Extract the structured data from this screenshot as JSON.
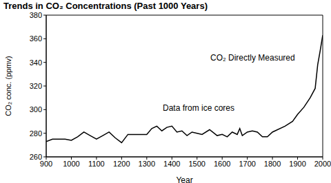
{
  "chart_data": {
    "type": "line",
    "title": "Trends in CO₂ Concentrations (Past 1000 Years)",
    "x_label": "Year",
    "y_label": "CO₂ conc. (ppmv)",
    "annotations": [
      "Data from ice cores",
      "CO₂ Directly Measured"
    ],
    "x": [
      900,
      925,
      950,
      975,
      1000,
      1025,
      1050,
      1075,
      1100,
      1125,
      1150,
      1175,
      1200,
      1225,
      1250,
      1275,
      1300,
      1320,
      1340,
      1360,
      1380,
      1400,
      1420,
      1440,
      1460,
      1480,
      1500,
      1520,
      1550,
      1580,
      1600,
      1620,
      1640,
      1660,
      1670,
      1680,
      1700,
      1720,
      1740,
      1760,
      1780,
      1800,
      1850,
      1880,
      1900,
      1925,
      1950,
      1970,
      1980,
      1990,
      2000
    ],
    "series": [
      {
        "name": "CO₂",
        "color": "#000000",
        "values": [
          273,
          275,
          275,
          275,
          274,
          277,
          281,
          278,
          275,
          278,
          281,
          276,
          272,
          279,
          279,
          279,
          279,
          284,
          286,
          282,
          285,
          286,
          281,
          282,
          278,
          281,
          280,
          279,
          283,
          278,
          279,
          277,
          281,
          279,
          284,
          278,
          281,
          282,
          281,
          277,
          277,
          281,
          286,
          290,
          296,
          302,
          310,
          318,
          338,
          350,
          363
        ]
      }
    ],
    "xlim": [
      900,
      2000
    ],
    "xticks": [
      900,
      1000,
      1100,
      1200,
      1300,
      1400,
      1500,
      1600,
      1700,
      1800,
      1900,
      2000
    ],
    "ylim": [
      260,
      380
    ],
    "yticks": [
      260,
      280,
      300,
      320,
      340,
      360,
      380
    ],
    "grid": false
  }
}
